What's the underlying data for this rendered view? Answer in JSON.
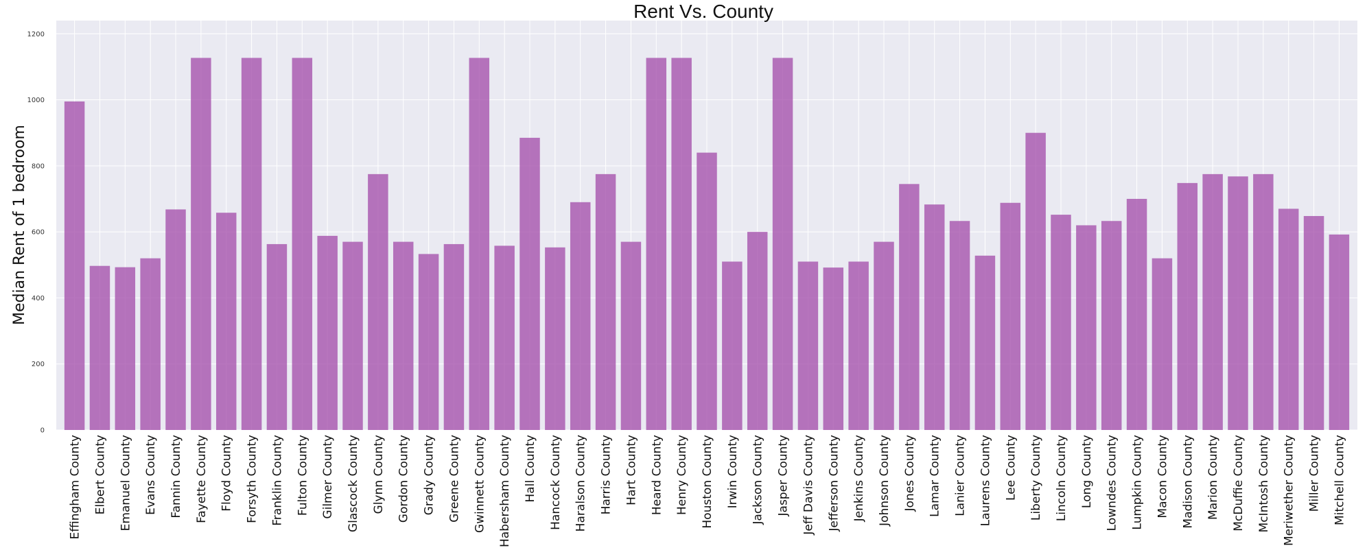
{
  "chart_data": {
    "type": "bar",
    "title": "Rent Vs. County",
    "xlabel": "",
    "ylabel": "Median Rent of 1 bedroom",
    "ylim": [
      0,
      1240
    ],
    "yticks": [
      0,
      200,
      400,
      600,
      800,
      1000,
      1200
    ],
    "grid": true,
    "bar_color": "#a24aa8",
    "background_color": "#eaeaf2",
    "grid_color": "#ffffff",
    "categories": [
      "Effingham County",
      "Elbert County",
      "Emanuel County",
      "Evans County",
      "Fannin County",
      "Fayette County",
      "Floyd County",
      "Forsyth County",
      "Franklin County",
      "Fulton County",
      "Gilmer County",
      "Glascock County",
      "Glynn County",
      "Gordon County",
      "Grady County",
      "Greene County",
      "Gwinnett County",
      "Habersham County",
      "Hall County",
      "Hancock County",
      "Haralson County",
      "Harris County",
      "Hart County",
      "Heard County",
      "Henry County",
      "Houston County",
      "Irwin County",
      "Jackson County",
      "Jasper County",
      "Jeff Davis County",
      "Jefferson County",
      "Jenkins County",
      "Johnson County",
      "Jones County",
      "Lamar County",
      "Lanier County",
      "Laurens County",
      "Lee County",
      "Liberty County",
      "Lincoln County",
      "Long County",
      "Lowndes County",
      "Lumpkin County",
      "Macon County",
      "Madison County",
      "Marion County",
      "McDuffie County",
      "McIntosh County",
      "Meriwether County",
      "Miller County",
      "Mitchell County"
    ],
    "values": [
      995,
      497,
      493,
      520,
      668,
      1127,
      658,
      1127,
      563,
      1127,
      588,
      570,
      775,
      570,
      533,
      563,
      1127,
      558,
      885,
      553,
      690,
      775,
      570,
      1127,
      1127,
      840,
      510,
      600,
      1127,
      510,
      492,
      510,
      570,
      745,
      683,
      633,
      528,
      688,
      900,
      652,
      620,
      633,
      700,
      520,
      748,
      775,
      768,
      775,
      670,
      648,
      592
    ]
  }
}
